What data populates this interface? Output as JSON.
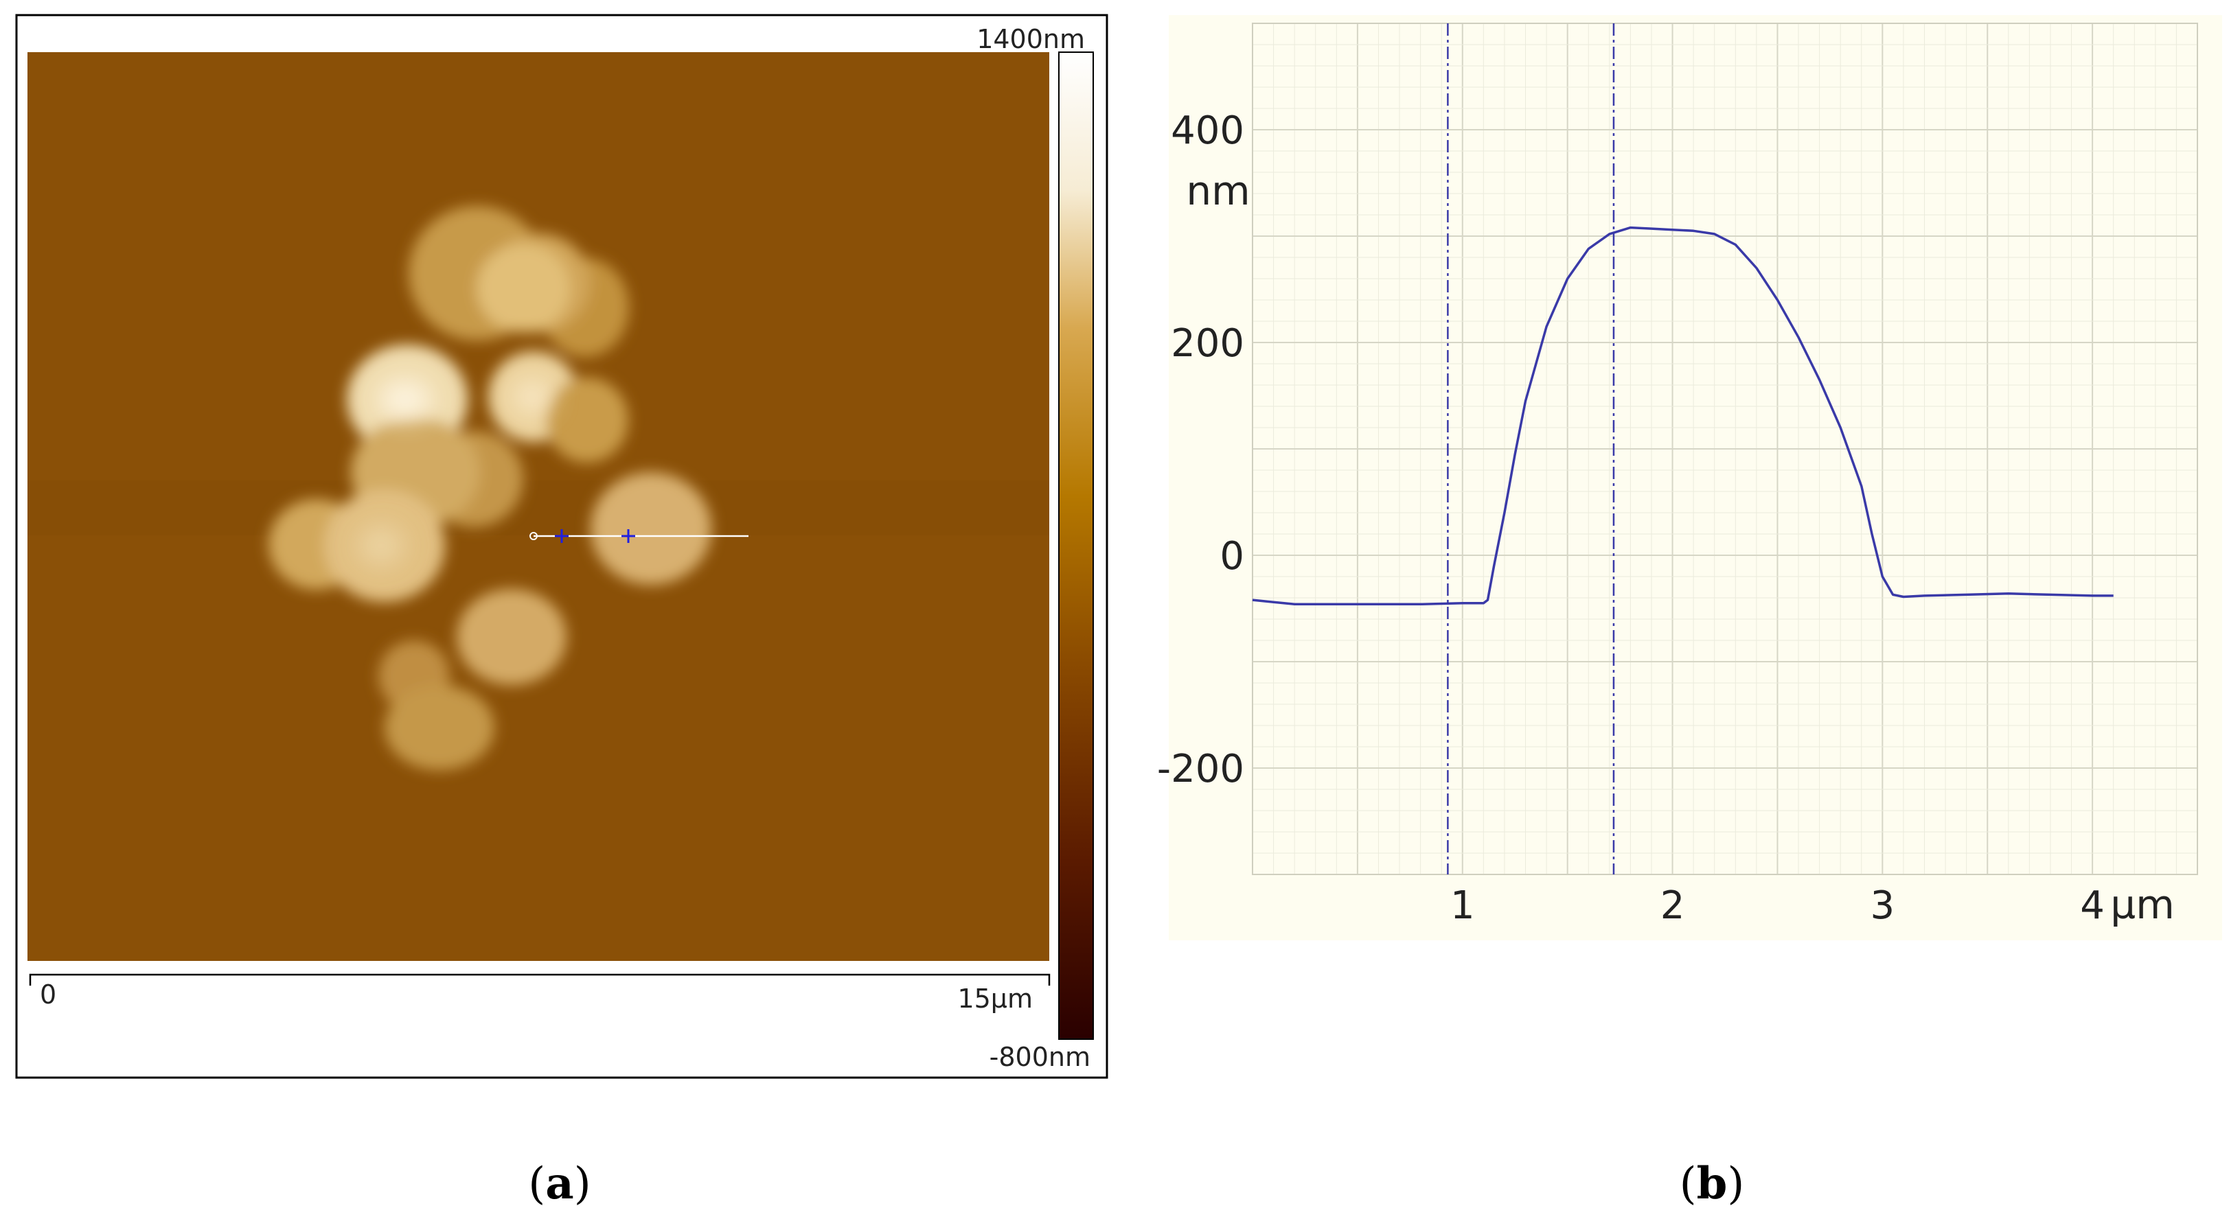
{
  "panels": {
    "a": {
      "caption_open": "(",
      "caption_letter": "a",
      "caption_close": ")",
      "colorbar": {
        "max_label": "1400nm",
        "min_label": "-800nm",
        "colors": [
          "#2a0000",
          "#5a1a00",
          "#8a4a00",
          "#b57800",
          "#d8a850",
          "#f6ecd4",
          "#ffffff"
        ]
      },
      "scale": {
        "start_label": "0",
        "end_label": "15µm"
      },
      "background_color": "#8a5007"
    },
    "b": {
      "caption_open": "(",
      "caption_letter": "b",
      "caption_close": ")",
      "background_color": "#fefdf0",
      "line_color": "#3a3aa8"
    }
  },
  "chart_data": {
    "type": "line",
    "title": "",
    "xlabel": "µm",
    "ylabel": "nm",
    "xlim": [
      0,
      4.5
    ],
    "ylim": [
      -300,
      500
    ],
    "xticks": [
      1,
      2,
      3,
      4
    ],
    "yticks": [
      400,
      200,
      0,
      -200
    ],
    "grid": true,
    "cursors_x": [
      0.93,
      1.72
    ],
    "series": [
      {
        "values": [
          [
            0.0,
            -42
          ],
          [
            0.1,
            -44
          ],
          [
            0.2,
            -46
          ],
          [
            0.4,
            -46
          ],
          [
            0.6,
            -46
          ],
          [
            0.8,
            -46
          ],
          [
            1.0,
            -45
          ],
          [
            1.1,
            -45
          ],
          [
            1.12,
            -42
          ],
          [
            1.15,
            -10
          ],
          [
            1.2,
            40
          ],
          [
            1.25,
            95
          ],
          [
            1.3,
            145
          ],
          [
            1.4,
            215
          ],
          [
            1.5,
            260
          ],
          [
            1.6,
            288
          ],
          [
            1.7,
            302
          ],
          [
            1.8,
            308
          ],
          [
            1.9,
            307
          ],
          [
            2.0,
            306
          ],
          [
            2.1,
            305
          ],
          [
            2.2,
            302
          ],
          [
            2.3,
            292
          ],
          [
            2.4,
            270
          ],
          [
            2.5,
            240
          ],
          [
            2.6,
            205
          ],
          [
            2.7,
            165
          ],
          [
            2.8,
            120
          ],
          [
            2.9,
            65
          ],
          [
            2.95,
            20
          ],
          [
            3.0,
            -20
          ],
          [
            3.05,
            -37
          ],
          [
            3.1,
            -39
          ],
          [
            3.2,
            -38
          ],
          [
            3.4,
            -37
          ],
          [
            3.6,
            -36
          ],
          [
            3.8,
            -37
          ],
          [
            4.0,
            -38
          ],
          [
            4.1,
            -38
          ]
        ]
      }
    ]
  }
}
